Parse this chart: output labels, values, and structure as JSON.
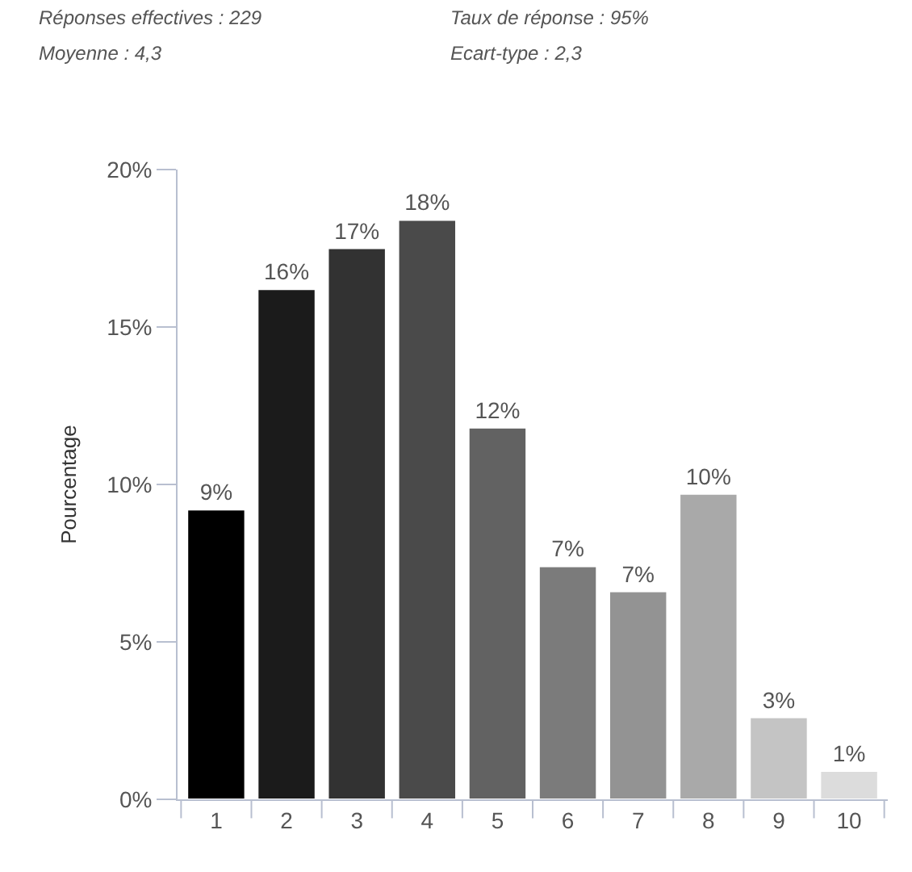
{
  "chart_data": {
    "type": "bar",
    "annotations": [
      "Réponses effectives : 229",
      "Taux de réponse : 95%",
      "Moyenne : 4,3",
      "Ecart-type : 2,3"
    ],
    "ylabel": "Pourcentage",
    "categories": [
      "1",
      "2",
      "3",
      "4",
      "5",
      "6",
      "7",
      "8",
      "9",
      "10"
    ],
    "values": [
      9.2,
      16.2,
      17.5,
      18.4,
      11.8,
      7.4,
      6.6,
      9.7,
      2.6,
      0.9
    ],
    "value_labels": [
      "9%",
      "16%",
      "17%",
      "18%",
      "12%",
      "7%",
      "7%",
      "10%",
      "3%",
      "1%"
    ],
    "colors": [
      "#000000",
      "#1b1b1b",
      "#323232",
      "#4a4a4a",
      "#626262",
      "#7b7b7b",
      "#939393",
      "#a9a9a9",
      "#c4c4c4",
      "#dcdcdc"
    ],
    "ylim": [
      0,
      20
    ],
    "yticks": [
      {
        "value": 0,
        "label": "0%"
      },
      {
        "value": 5,
        "label": "5%"
      },
      {
        "value": 10,
        "label": "10%"
      },
      {
        "value": 15,
        "label": "15%"
      },
      {
        "value": 20,
        "label": "20%"
      }
    ],
    "legend": false
  }
}
